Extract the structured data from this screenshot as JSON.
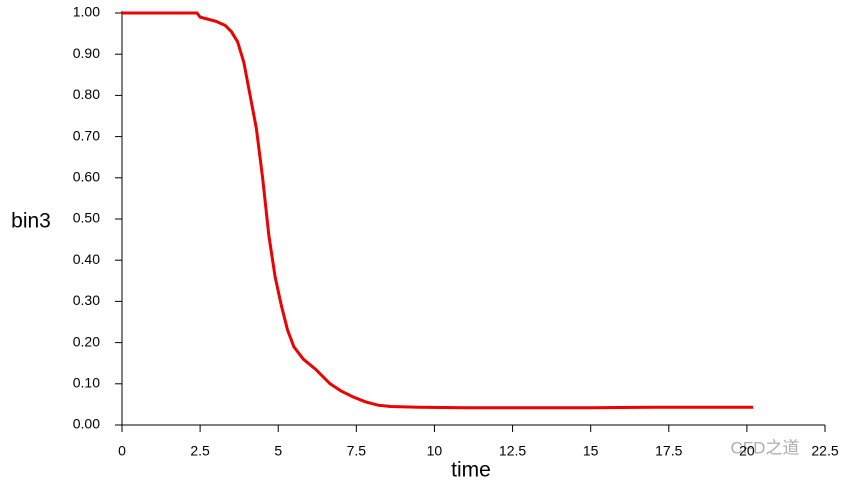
{
  "chart_data": {
    "type": "line",
    "x_label": "time",
    "y_label": "bin3",
    "x": [
      0,
      2.4,
      2.5,
      3.0,
      3.3,
      3.5,
      3.7,
      3.9,
      4.1,
      4.3,
      4.5,
      4.7,
      4.9,
      5.1,
      5.3,
      5.5,
      5.8,
      6.2,
      6.66,
      7.0,
      7.4,
      7.8,
      8.2,
      8.6,
      9.5,
      11,
      13,
      15,
      17,
      19,
      20.2
    ],
    "series": [
      {
        "color": "#ee0000",
        "values": [
          1.0,
          1.0,
          0.99,
          0.98,
          0.97,
          0.955,
          0.93,
          0.88,
          0.8,
          0.72,
          0.6,
          0.46,
          0.36,
          0.29,
          0.23,
          0.19,
          0.16,
          0.135,
          0.1,
          0.083,
          0.068,
          0.056,
          0.048,
          0.045,
          0.043,
          0.042,
          0.042,
          0.042,
          0.043,
          0.043,
          0.043
        ]
      }
    ],
    "xlim": [
      0,
      22.5
    ],
    "ylim": [
      0,
      1
    ],
    "xticks": [
      0,
      2.5,
      5,
      7.5,
      10,
      12.5,
      15,
      17.5,
      20,
      22.5
    ],
    "yticks": [
      {
        "value": 0,
        "label": "0.00"
      },
      {
        "value": 0.1,
        "label": "0.10"
      },
      {
        "value": 0.2,
        "label": "0.20"
      },
      {
        "value": 0.3,
        "label": "0.30"
      },
      {
        "value": 0.4,
        "label": "0.40"
      },
      {
        "value": 0.5,
        "label": "0.50"
      },
      {
        "value": 0.6,
        "label": "0.60"
      },
      {
        "value": 0.7,
        "label": "0.70"
      },
      {
        "value": 0.8,
        "label": "0.80"
      },
      {
        "value": 0.9,
        "label": "0.90"
      },
      {
        "value": 1,
        "label": "1.00"
      }
    ],
    "watermark": "CFD之道"
  }
}
